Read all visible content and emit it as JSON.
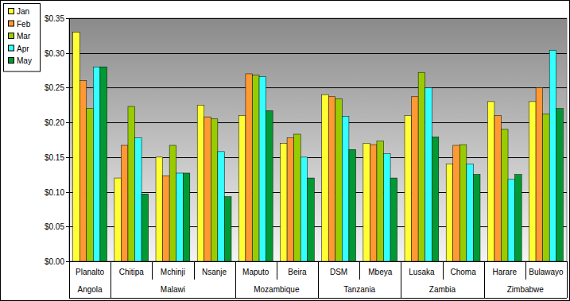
{
  "chart_data": {
    "type": "bar",
    "categories": [
      "Planalto",
      "Chitipa",
      "Mchinji",
      "Nsanje",
      "Maputo",
      "Beira",
      "DSM",
      "Mbeya",
      "Lusaka",
      "Choma",
      "Harare",
      "Bulawayo"
    ],
    "category_groups": [
      "Angola",
      "Malawi",
      "Malawi",
      "Malawi",
      "Mozambique",
      "Mozambique",
      "Tanzania",
      "Tanzania",
      "Zambia",
      "Zambia",
      "Zimbabwe",
      "Zimbabwe"
    ],
    "series": [
      {
        "name": "Jan",
        "color": "#ffff33",
        "values": [
          0.33,
          0.12,
          0.15,
          0.225,
          0.21,
          0.17,
          0.24,
          0.17,
          0.21,
          0.14,
          0.23,
          0.23
        ]
      },
      {
        "name": "Feb",
        "color": "#ff9933",
        "values": [
          0.26,
          0.167,
          0.123,
          0.208,
          0.27,
          0.178,
          0.237,
          0.168,
          0.237,
          0.167,
          0.21,
          0.25
        ]
      },
      {
        "name": "Mar",
        "color": "#99cc00",
        "values": [
          0.22,
          0.223,
          0.167,
          0.205,
          0.268,
          0.183,
          0.234,
          0.173,
          0.272,
          0.168,
          0.19,
          0.212
        ]
      },
      {
        "name": "Apr",
        "color": "#33ffff",
        "values": [
          0.28,
          0.178,
          0.127,
          0.158,
          0.266,
          0.15,
          0.209,
          0.155,
          0.25,
          0.14,
          0.118,
          0.304
        ]
      },
      {
        "name": "May",
        "color": "#009933",
        "values": [
          0.28,
          0.097,
          0.127,
          0.093,
          0.217,
          0.12,
          0.161,
          0.12,
          0.179,
          0.125,
          0.125,
          0.22
        ]
      }
    ],
    "ylim": [
      0,
      0.35
    ],
    "yticks": [
      {
        "value": 0,
        "label": "$0.00"
      },
      {
        "value": 0.05,
        "label": "$0.05"
      },
      {
        "value": 0.1,
        "label": "$0.10"
      },
      {
        "value": 0.15,
        "label": "$0.15"
      },
      {
        "value": 0.2,
        "label": "$0.20"
      },
      {
        "value": 0.25,
        "label": "$0.25"
      },
      {
        "value": 0.3,
        "label": "$0.30"
      },
      {
        "value": 0.35,
        "label": "$0.35"
      }
    ],
    "grid": true,
    "legend": "top-left"
  }
}
